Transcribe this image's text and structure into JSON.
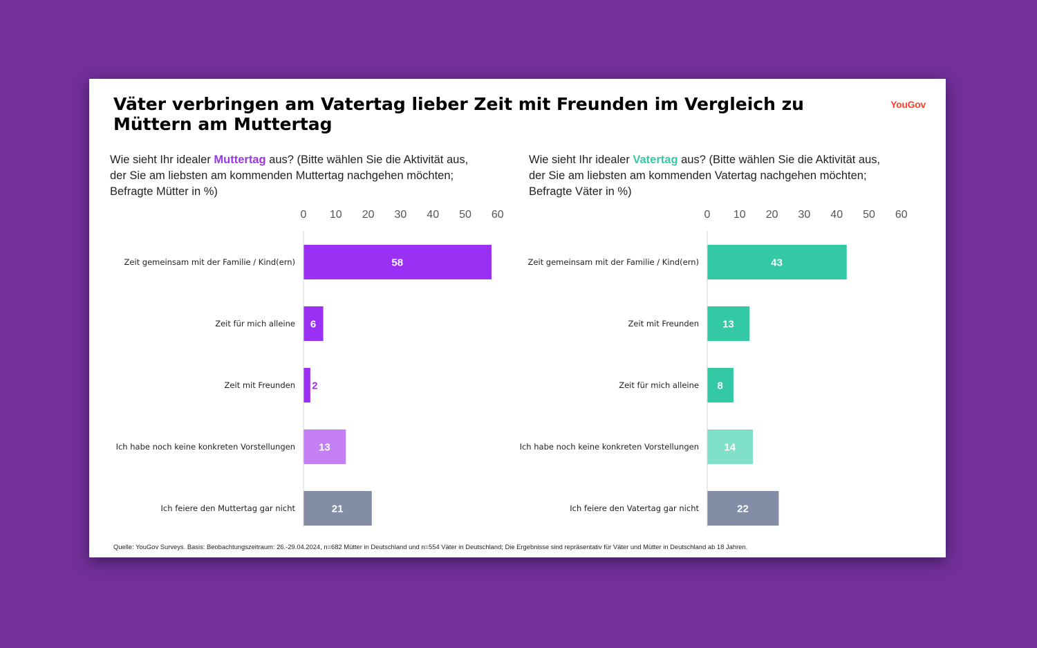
{
  "title": "Väter verbringen am Vatertag lieber Zeit mit Freunden im Vergleich zu Müttern am Muttertag",
  "brand": "YouGov",
  "left_question": {
    "prefix": "Wie sieht Ihr idealer ",
    "emphasis": "Muttertag",
    "suffix": " aus? (Bitte wählen Sie die Aktivität aus, der Sie am liebsten am kommenden Muttertag nachgehen möchten; Befragte Mütter in %)"
  },
  "right_question": {
    "prefix": "Wie sieht Ihr idealer ",
    "emphasis": "Vatertag",
    "suffix": " aus? (Bitte wählen Sie die Aktivität aus, der Sie am liebsten am kommenden Vatertag nachgehen möchten; Befragte Väter in %)"
  },
  "source": "Quelle: YouGov Surveys. Basis: Beobachtungszeitraum: 26.-29.04.2024, n=682 Mütter in Deutschland und n=554 Väter in Deutschland; Die Ergebnisse sind repräsentativ für Väter und Mütter in Deutschland ab 18 Jahren.",
  "colors": {
    "background": "#73309c",
    "mother_primary": "#9b30f5",
    "mother_light": "#c57ff4",
    "father_primary": "#34c9a5",
    "father_light": "#80e0c9",
    "neutral": "#838ea6",
    "brand": "#ff412c"
  },
  "chart_data": [
    {
      "type": "bar",
      "orientation": "horizontal",
      "categories": [
        "Zeit gemeinsam mit der Familie / Kind(ern)",
        "Zeit für mich alleine",
        "Zeit mit Freunden",
        "Ich habe noch keine konkreten Vorstellungen",
        "Ich feiere den Muttertag gar nicht"
      ],
      "values": [
        58,
        6,
        2,
        13,
        21
      ],
      "bar_colors": [
        "#9b30f5",
        "#9b30f5",
        "#9b30f5",
        "#c57ff4",
        "#838ea6"
      ],
      "xlim": [
        0,
        60
      ],
      "xticks": [
        0,
        10,
        20,
        30,
        40,
        50,
        60
      ],
      "axis_position": "top",
      "grid": false
    },
    {
      "type": "bar",
      "orientation": "horizontal",
      "categories": [
        "Zeit gemeinsam mit der Familie / Kind(ern)",
        "Zeit mit Freunden",
        "Zeit für mich alleine",
        "Ich habe noch keine konkreten Vorstellungen",
        "Ich feiere den Vatertag gar nicht"
      ],
      "values": [
        43,
        13,
        8,
        14,
        22
      ],
      "bar_colors": [
        "#34c9a5",
        "#34c9a5",
        "#34c9a5",
        "#80e0c9",
        "#838ea6"
      ],
      "xlim": [
        0,
        60
      ],
      "xticks": [
        0,
        10,
        20,
        30,
        40,
        50,
        60
      ],
      "axis_position": "top",
      "grid": false
    }
  ]
}
